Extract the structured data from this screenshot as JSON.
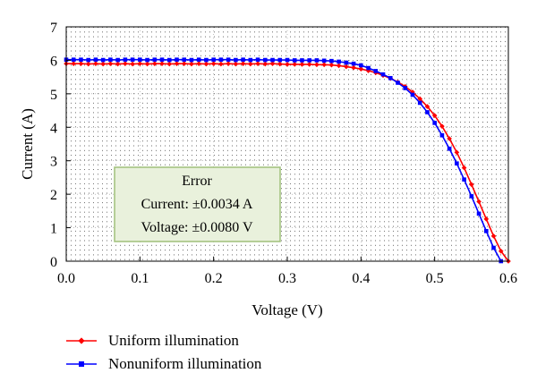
{
  "chart_data": {
    "type": "line",
    "title": "",
    "xlabel": "Voltage (V)",
    "ylabel": "Current (A)",
    "xlim": [
      0,
      0.6
    ],
    "ylim": [
      0,
      7
    ],
    "x_ticks": [
      "0.0",
      "0.1",
      "0.2",
      "0.3",
      "0.4",
      "0.5",
      "0.6"
    ],
    "y_ticks": [
      "0",
      "1",
      "2",
      "3",
      "4",
      "5",
      "6",
      "7"
    ],
    "grid": "dotted",
    "legend_position": "bottom-left",
    "series": [
      {
        "name": "Uniform illumination",
        "color": "#ff0000",
        "marker": "diamond",
        "x": [
          0.0,
          0.01,
          0.02,
          0.03,
          0.04,
          0.05,
          0.06,
          0.07,
          0.08,
          0.09,
          0.1,
          0.11,
          0.12,
          0.13,
          0.14,
          0.15,
          0.16,
          0.17,
          0.18,
          0.19,
          0.2,
          0.21,
          0.22,
          0.23,
          0.24,
          0.25,
          0.26,
          0.27,
          0.28,
          0.29,
          0.3,
          0.31,
          0.32,
          0.33,
          0.34,
          0.35,
          0.36,
          0.37,
          0.38,
          0.39,
          0.4,
          0.41,
          0.42,
          0.43,
          0.44,
          0.45,
          0.46,
          0.47,
          0.48,
          0.49,
          0.5,
          0.51,
          0.52,
          0.53,
          0.54,
          0.55,
          0.56,
          0.57,
          0.58,
          0.59,
          0.6
        ],
        "y": [
          5.9,
          5.9,
          5.9,
          5.89,
          5.9,
          5.89,
          5.9,
          5.89,
          5.9,
          5.89,
          5.9,
          5.89,
          5.9,
          5.9,
          5.89,
          5.9,
          5.9,
          5.89,
          5.9,
          5.89,
          5.9,
          5.89,
          5.9,
          5.89,
          5.9,
          5.89,
          5.9,
          5.89,
          5.9,
          5.89,
          5.88,
          5.88,
          5.88,
          5.88,
          5.87,
          5.87,
          5.86,
          5.84,
          5.81,
          5.78,
          5.74,
          5.69,
          5.63,
          5.55,
          5.46,
          5.35,
          5.22,
          5.05,
          4.85,
          4.62,
          4.35,
          4.03,
          3.66,
          3.25,
          2.79,
          2.29,
          1.78,
          1.26,
          0.75,
          0.3,
          0.0
        ]
      },
      {
        "name": "Nonuniform illumination",
        "color": "#0000ff",
        "marker": "square",
        "x": [
          0.0,
          0.01,
          0.02,
          0.03,
          0.04,
          0.05,
          0.06,
          0.07,
          0.08,
          0.09,
          0.1,
          0.11,
          0.12,
          0.13,
          0.14,
          0.15,
          0.16,
          0.17,
          0.18,
          0.19,
          0.2,
          0.21,
          0.22,
          0.23,
          0.24,
          0.25,
          0.26,
          0.27,
          0.28,
          0.29,
          0.3,
          0.31,
          0.32,
          0.33,
          0.34,
          0.35,
          0.36,
          0.37,
          0.38,
          0.39,
          0.4,
          0.41,
          0.42,
          0.43,
          0.44,
          0.45,
          0.46,
          0.47,
          0.48,
          0.49,
          0.5,
          0.51,
          0.52,
          0.53,
          0.54,
          0.55,
          0.56,
          0.57,
          0.58,
          0.59
        ],
        "y": [
          6.02,
          6.02,
          6.02,
          6.01,
          6.02,
          6.01,
          6.02,
          6.01,
          6.02,
          6.02,
          6.02,
          6.01,
          6.02,
          6.02,
          6.01,
          6.02,
          6.02,
          6.01,
          6.02,
          6.01,
          6.02,
          6.02,
          6.02,
          6.01,
          6.02,
          6.01,
          6.02,
          6.01,
          6.01,
          6.01,
          6.01,
          6.0,
          6.0,
          6.0,
          6.0,
          5.99,
          5.98,
          5.96,
          5.93,
          5.9,
          5.85,
          5.77,
          5.68,
          5.58,
          5.47,
          5.33,
          5.17,
          4.97,
          4.73,
          4.45,
          4.13,
          3.76,
          3.36,
          2.92,
          2.44,
          1.94,
          1.42,
          0.9,
          0.4,
          0.0
        ]
      }
    ],
    "annotation": {
      "lines": [
        "Error",
        "Current: ±0.0034 A",
        "Voltage: ±0.0080 V"
      ]
    }
  }
}
